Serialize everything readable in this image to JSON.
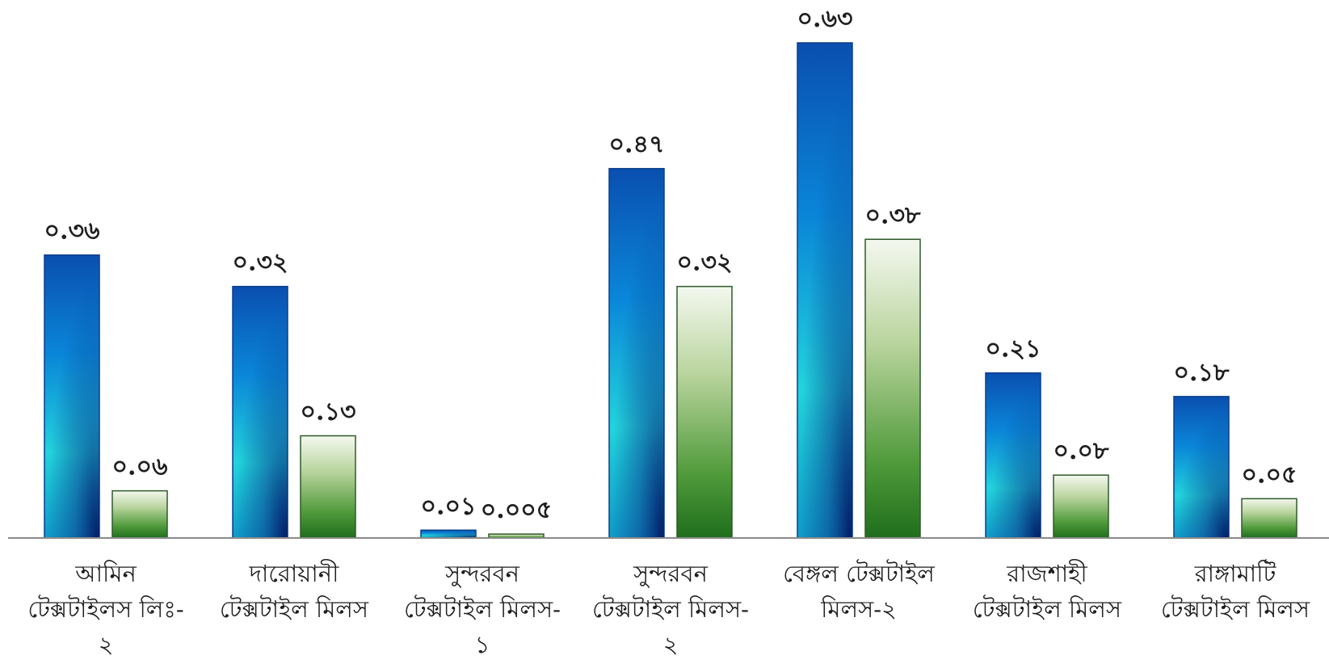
{
  "chart_data": {
    "type": "bar",
    "categories": [
      [
        "আমিন",
        "টেক্সটাইলস লিঃ-",
        "২"
      ],
      [
        "দারোয়ানী",
        "টেক্সটাইল মিলস"
      ],
      [
        "সুন্দরবন",
        "টেক্সটাইল মিলস-",
        "১"
      ],
      [
        "সুন্দরবন",
        "টেক্সটাইল মিলস-",
        "২"
      ],
      [
        "বেঙ্গল টেক্সটাইল",
        "মিলস-২"
      ],
      [
        "রাজশাহী",
        "টেক্সটাইল মিলস"
      ],
      [
        "রাঙ্গামাটি",
        "টেক্সটাইল মিলস"
      ]
    ],
    "series": [
      {
        "values": [
          0.36,
          0.32,
          0.01,
          0.47,
          0.63,
          0.21,
          0.18
        ],
        "labels": [
          "০.৩৬",
          "০.৩২",
          "০.০১",
          "০.৪৭",
          "০.৬৩",
          "০.২১",
          "০.১৮"
        ],
        "color": "#1f6fd0"
      },
      {
        "values": [
          0.06,
          0.13,
          0.005,
          0.32,
          0.38,
          0.08,
          0.05
        ],
        "labels": [
          "০.০৬",
          "০.১৩",
          "০.০০৫",
          "০.৩২",
          "০.৩৮",
          "০.০৮",
          "০.০৫"
        ],
        "color": "#3d8a2a"
      }
    ],
    "title": "",
    "xlabel": "",
    "ylabel": "",
    "ylim": [
      0,
      0.7
    ],
    "grid": false,
    "legend": "none"
  }
}
